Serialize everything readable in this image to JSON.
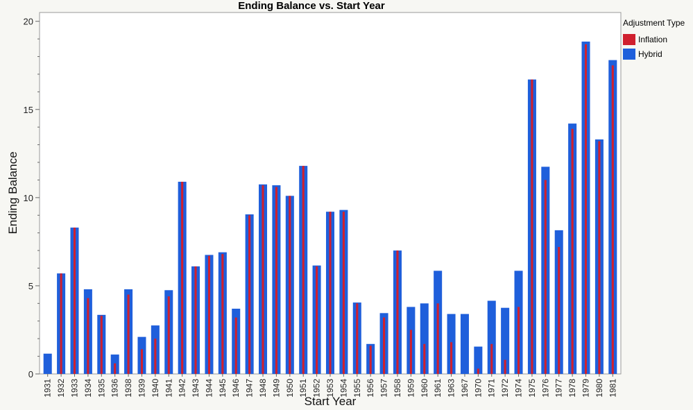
{
  "chart_data": {
    "type": "bar",
    "title": "Ending Balance vs. Start Year",
    "xlabel": "Start Year",
    "ylabel": "Ending Balance",
    "ylim": [
      0,
      20.5
    ],
    "yticks": [
      0,
      5,
      10,
      15,
      20
    ],
    "grid": false,
    "legend_placement": "right",
    "legend_title": "Adjustment Type",
    "categories": [
      "1931",
      "1932",
      "1933",
      "1934",
      "1935",
      "1936",
      "1938",
      "1939",
      "1940",
      "1941",
      "1942",
      "1943",
      "1944",
      "1945",
      "1946",
      "1947",
      "1948",
      "1949",
      "1950",
      "1951",
      "1952",
      "1953",
      "1954",
      "1955",
      "1956",
      "1957",
      "1958",
      "1959",
      "1960",
      "1961",
      "1963",
      "1967",
      "1970",
      "1971",
      "1972",
      "1974",
      "1975",
      "1976",
      "1977",
      "1978",
      "1979",
      "1980",
      "1981"
    ],
    "series": [
      {
        "name": "Inflation",
        "color": "#d0202e",
        "values": [
          0,
          5.7,
          8.3,
          4.3,
          3.3,
          0.6,
          4.5,
          1.4,
          2.0,
          4.4,
          10.9,
          6.1,
          6.7,
          6.8,
          3.2,
          9.0,
          10.7,
          10.6,
          10.1,
          11.8,
          6.1,
          9.2,
          9.2,
          4.0,
          1.6,
          3.2,
          7.0,
          2.5,
          1.7,
          4.0,
          1.8,
          0,
          0.3,
          1.7,
          0.8,
          3.8,
          16.7,
          11.0,
          7.2,
          13.9,
          18.7,
          13.2,
          17.5
        ]
      },
      {
        "name": "Hybrid",
        "color": "#1f5fdb",
        "values": [
          1.15,
          5.7,
          8.3,
          4.8,
          3.35,
          1.1,
          4.8,
          2.1,
          2.75,
          4.75,
          10.9,
          6.1,
          6.75,
          6.9,
          3.7,
          9.05,
          10.75,
          10.7,
          10.1,
          11.8,
          6.15,
          9.2,
          9.3,
          4.05,
          1.7,
          3.45,
          7.0,
          3.8,
          4.0,
          5.85,
          3.4,
          3.4,
          1.55,
          4.15,
          3.75,
          5.85,
          16.7,
          11.75,
          8.15,
          14.2,
          18.85,
          13.3,
          17.8
        ]
      }
    ]
  }
}
